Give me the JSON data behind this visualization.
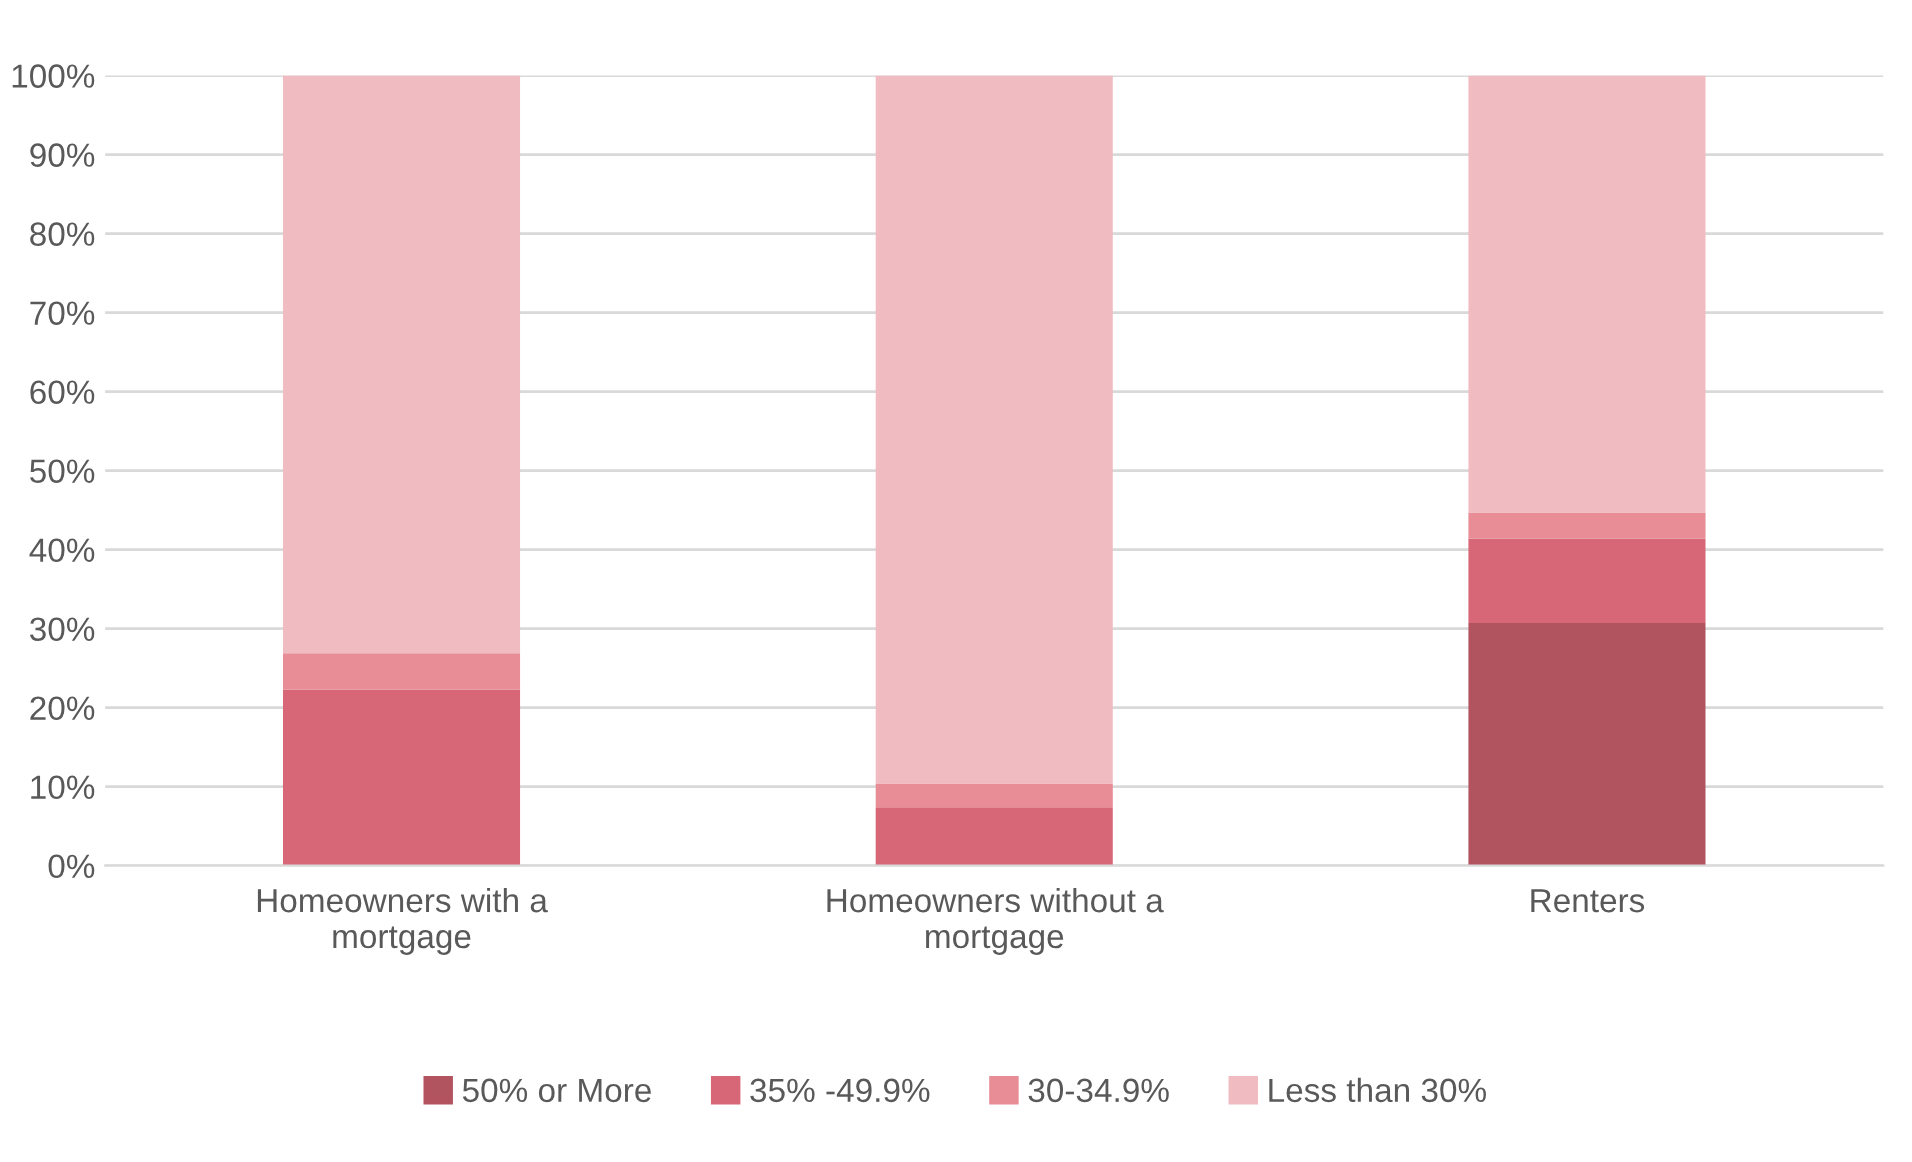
{
  "chart_data": {
    "type": "bar",
    "stacked": true,
    "categories": [
      "Homeowners with a mortgage",
      "Homeowners without a mortgage",
      "Renters"
    ],
    "series": [
      {
        "name": "50% or More",
        "color": "#b25360",
        "values": [
          0,
          0,
          30.7
        ]
      },
      {
        "name": "35% -49.9%",
        "color": "#d76676",
        "values": [
          22.3,
          7.4,
          10.7
        ]
      },
      {
        "name": "30-34.9%",
        "color": "#e88c95",
        "values": [
          4.6,
          3.0,
          3.3
        ]
      },
      {
        "name": "Less than 30%",
        "color": "#f0bbc1",
        "values": [
          73.1,
          89.6,
          55.3
        ]
      }
    ],
    "ylim": [
      0,
      100
    ],
    "yticks": [
      {
        "value": 0,
        "label": "0%"
      },
      {
        "value": 10,
        "label": "10%"
      },
      {
        "value": 20,
        "label": "20%"
      },
      {
        "value": 30,
        "label": "30%"
      },
      {
        "value": 40,
        "label": "40%"
      },
      {
        "value": 50,
        "label": "50%"
      },
      {
        "value": 60,
        "label": "60%"
      },
      {
        "value": 70,
        "label": "70%"
      },
      {
        "value": 80,
        "label": "80%"
      },
      {
        "value": 90,
        "label": "90%"
      },
      {
        "value": 100,
        "label": "100%"
      }
    ],
    "grid": "y",
    "legend": "bottom"
  }
}
